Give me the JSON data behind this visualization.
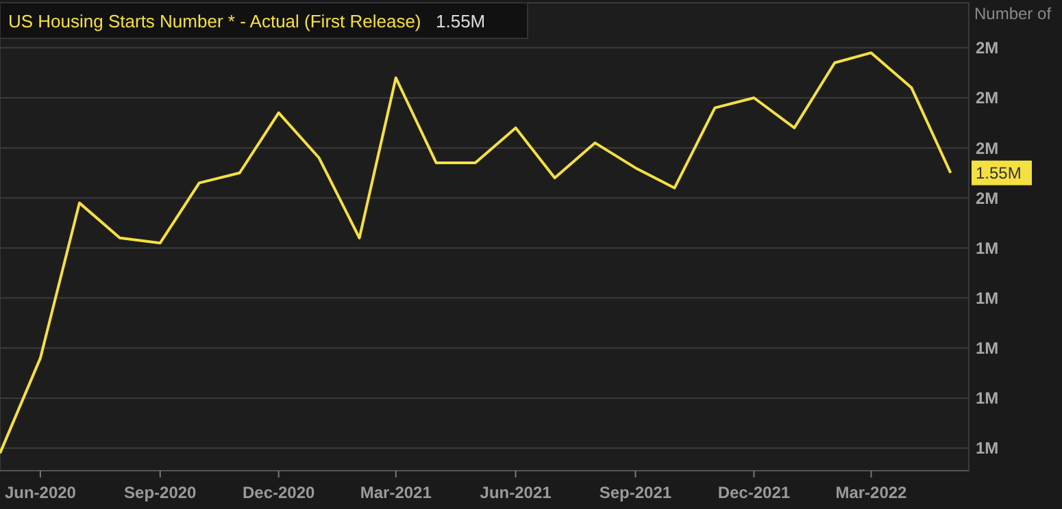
{
  "chart_data": {
    "type": "line",
    "ylabel": "Number of",
    "x": [
      "2020-05-01",
      "2020-06-01",
      "2020-07-01",
      "2020-08-01",
      "2020-09-01",
      "2020-10-01",
      "2020-11-01",
      "2020-12-01",
      "2021-01-01",
      "2021-02-01",
      "2021-03-01",
      "2021-04-01",
      "2021-05-01",
      "2021-06-01",
      "2021-07-01",
      "2021-08-01",
      "2021-09-01",
      "2021-10-01",
      "2021-11-01",
      "2021-12-01",
      "2022-01-01",
      "2022-02-01",
      "2022-03-01",
      "2022-04-01",
      "2022-05-01"
    ],
    "series": [
      {
        "name": "US Housing Starts Number * - Actual (First Release)",
        "color": "#f5e042",
        "values": [
          0.99,
          1.18,
          1.49,
          1.42,
          1.41,
          1.53,
          1.55,
          1.67,
          1.58,
          1.42,
          1.74,
          1.57,
          1.57,
          1.64,
          1.54,
          1.61,
          1.56,
          1.52,
          1.68,
          1.7,
          1.64,
          1.77,
          1.79,
          1.72,
          1.55
        ]
      }
    ],
    "xlim": [
      "2020-05-01",
      "2022-05-15"
    ],
    "xticks": [
      {
        "value": "2020-06-01",
        "label": "Jun-2020"
      },
      {
        "value": "2020-09-01",
        "label": "Sep-2020"
      },
      {
        "value": "2020-12-01",
        "label": "Dec-2020"
      },
      {
        "value": "2021-03-01",
        "label": "Mar-2021"
      },
      {
        "value": "2021-06-01",
        "label": "Jun-2021"
      },
      {
        "value": "2021-09-01",
        "label": "Sep-2021"
      },
      {
        "value": "2021-12-01",
        "label": "Dec-2021"
      },
      {
        "value": "2022-03-01",
        "label": "Mar-2022"
      }
    ],
    "ylim": [
      0.955,
      1.89
    ],
    "yticks": [
      {
        "value": 1.0,
        "label": "1M"
      },
      {
        "value": 1.1,
        "label": "1M"
      },
      {
        "value": 1.2,
        "label": "1M"
      },
      {
        "value": 1.3,
        "label": "1M"
      },
      {
        "value": 1.4,
        "label": "1M"
      },
      {
        "value": 1.5,
        "label": "2M"
      },
      {
        "value": 1.6,
        "label": "2M"
      },
      {
        "value": 1.7,
        "label": "2M"
      },
      {
        "value": 1.8,
        "label": "2M"
      }
    ],
    "annotations": [
      "1.55M",
      {
        "text": "1.55M",
        "x": "2022-05-01",
        "y": 1.55
      }
    ],
    "grid": "y",
    "legend": "top left",
    "marker": "none",
    "line_style": "solid"
  }
}
